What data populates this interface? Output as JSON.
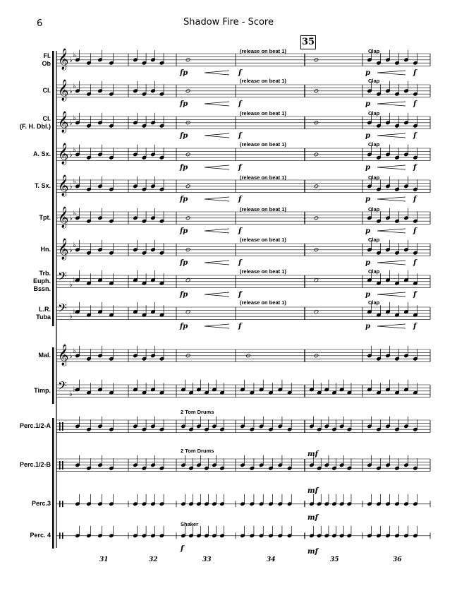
{
  "header": {
    "page_number": "6",
    "title": "Shadow Fire - Score"
  },
  "rehearsal_mark": "35",
  "instruments": [
    {
      "label": "Fl.\nOb",
      "clef": "treble"
    },
    {
      "label": "Cl.",
      "clef": "treble"
    },
    {
      "label": "Cl.\n(F. H. Dbl.)",
      "clef": "treble"
    },
    {
      "label": "A. Sx.",
      "clef": "treble"
    },
    {
      "label": "T. Sx.",
      "clef": "treble"
    },
    {
      "label": "Tpt.",
      "clef": "treble"
    },
    {
      "label": "Hn.",
      "clef": "treble"
    },
    {
      "label": "Trb.\nEuph.\nBssn.",
      "clef": "bass"
    },
    {
      "label": "L.R.\nTuba",
      "clef": "bass"
    },
    {
      "label": "Mal.",
      "clef": "treble"
    },
    {
      "label": "Timp.",
      "clef": "bass"
    },
    {
      "label": "Perc.1/2-A",
      "clef": "perc"
    },
    {
      "label": "Perc.1/2-B",
      "clef": "perc"
    },
    {
      "label": "Perc.3",
      "clef": "perc"
    },
    {
      "label": "Perc. 4",
      "clef": "perc"
    }
  ],
  "annotations": {
    "release": "(release on beat 1)",
    "clap": "Clap",
    "tom_drums": "2 Tom Drums",
    "shaker": "Shaker"
  },
  "dynamics": {
    "fp": "fp",
    "f": "f",
    "p": "p",
    "mf": "mf"
  },
  "measure_numbers": [
    "31",
    "32",
    "33",
    "34",
    "35",
    "36"
  ]
}
